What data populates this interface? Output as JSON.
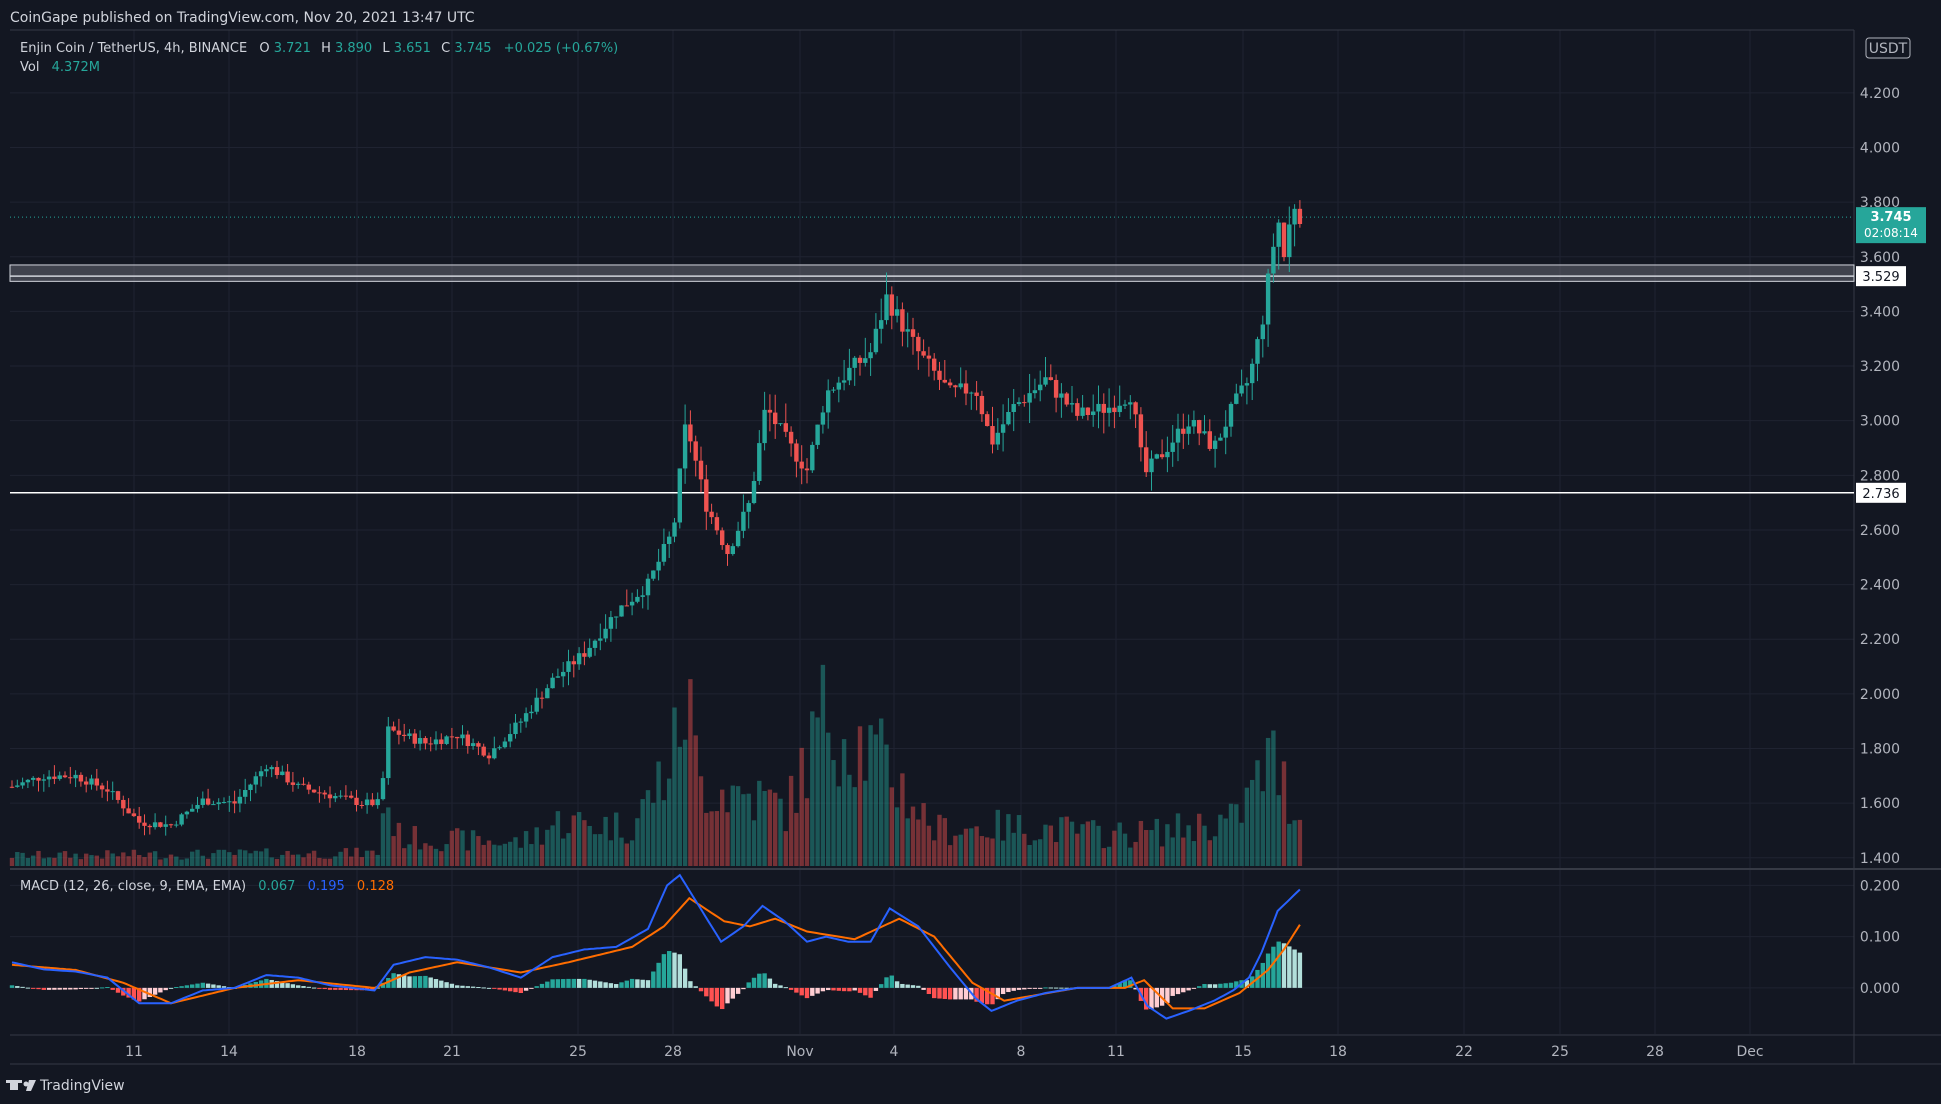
{
  "header": {
    "publisher": "CoinGape published on TradingView.com, Nov 20, 2021 13:47 UTC"
  },
  "footer": {
    "brand": "TradingView"
  },
  "colors": {
    "up": "#26a69a",
    "down": "#ef5350",
    "macd_line": "#2962ff",
    "signal_line": "#ff6d00",
    "background": "#131722"
  },
  "chart_data": [
    {
      "type": "candlestick",
      "title": "Enjin Coin / TetherUS, 4h, BINANCE",
      "ohlc": {
        "o_label": "O",
        "o": "3.721",
        "h_label": "H",
        "h": "3.890",
        "l_label": "L",
        "l": "3.651",
        "c_label": "C",
        "c": "3.745",
        "change": "+0.025 (+0.67%)"
      },
      "volume": {
        "label": "Vol",
        "value": "4.372M"
      },
      "currency": "USDT",
      "x_ticks": [
        "11",
        "14",
        "18",
        "21",
        "25",
        "28",
        "Nov",
        "4",
        "8",
        "11",
        "15",
        "18",
        "22",
        "25",
        "28",
        "Dec"
      ],
      "y_ticks": [
        "4.200",
        "4.000",
        "3.800",
        "3.600",
        "3.400",
        "3.200",
        "3.000",
        "2.800",
        "2.600",
        "2.400",
        "2.200",
        "2.000",
        "1.800",
        "1.600",
        "1.400"
      ],
      "y_range": [
        1.37,
        4.43
      ],
      "last_price": {
        "value": "3.745",
        "countdown": "02:08:14"
      },
      "levels": [
        {
          "value": "3.529"
        },
        {
          "value": "2.736"
        }
      ],
      "resistance_zone": [
        3.51,
        3.57
      ],
      "path_anchors": [
        {
          "d": 0,
          "p": 1.66
        },
        {
          "d": 1,
          "p": 1.7
        },
        {
          "d": 2,
          "p": 1.7
        },
        {
          "d": 3,
          "p": 1.65
        },
        {
          "d": 4,
          "p": 1.53
        },
        {
          "d": 5,
          "p": 1.52
        },
        {
          "d": 6,
          "p": 1.61
        },
        {
          "d": 7,
          "p": 1.6
        },
        {
          "d": 8,
          "p": 1.74
        },
        {
          "d": 9,
          "p": 1.66
        },
        {
          "d": 10,
          "p": 1.63
        },
        {
          "d": 11,
          "p": 1.6
        },
        {
          "d": 11.6,
          "p": 1.6
        },
        {
          "d": 11.8,
          "p": 1.87
        },
        {
          "d": 13,
          "p": 1.82
        },
        {
          "d": 14,
          "p": 1.85
        },
        {
          "d": 15,
          "p": 1.78
        },
        {
          "d": 16,
          "p": 1.9
        },
        {
          "d": 17,
          "p": 2.05
        },
        {
          "d": 18,
          "p": 2.15
        },
        {
          "d": 19,
          "p": 2.3
        },
        {
          "d": 20,
          "p": 2.4
        },
        {
          "d": 20.8,
          "p": 2.6
        },
        {
          "d": 21.2,
          "p": 3.0
        },
        {
          "d": 21.8,
          "p": 2.7
        },
        {
          "d": 22.5,
          "p": 2.52
        },
        {
          "d": 23.2,
          "p": 2.7
        },
        {
          "d": 23.7,
          "p": 3.05
        },
        {
          "d": 24.5,
          "p": 2.9
        },
        {
          "d": 25,
          "p": 2.82
        },
        {
          "d": 25.6,
          "p": 3.1
        },
        {
          "d": 26.3,
          "p": 3.18
        },
        {
          "d": 27,
          "p": 3.25
        },
        {
          "d": 27.5,
          "p": 3.45
        },
        {
          "d": 28.5,
          "p": 3.25
        },
        {
          "d": 29.5,
          "p": 3.1
        },
        {
          "d": 30.3,
          "p": 3.12
        },
        {
          "d": 30.8,
          "p": 2.92
        },
        {
          "d": 31.5,
          "p": 3.05
        },
        {
          "d": 32.5,
          "p": 3.15
        },
        {
          "d": 33.5,
          "p": 3.02
        },
        {
          "d": 34.5,
          "p": 3.05
        },
        {
          "d": 35.2,
          "p": 3.1
        },
        {
          "d": 35.6,
          "p": 2.8
        },
        {
          "d": 36.3,
          "p": 2.9
        },
        {
          "d": 37,
          "p": 3.0
        },
        {
          "d": 37.8,
          "p": 2.9
        },
        {
          "d": 38.4,
          "p": 3.05
        },
        {
          "d": 38.9,
          "p": 3.15
        },
        {
          "d": 39.3,
          "p": 3.35
        },
        {
          "d": 39.8,
          "p": 3.75
        },
        {
          "d": 40,
          "p": 3.6
        },
        {
          "d": 40.3,
          "p": 3.8
        },
        {
          "d": 40.55,
          "p": 3.745
        }
      ],
      "volume_anchors": [
        {
          "d": 0,
          "v": 0.2
        },
        {
          "d": 11.5,
          "v": 0.25
        },
        {
          "d": 11.7,
          "v": 1.3
        },
        {
          "d": 12.2,
          "v": 0.55
        },
        {
          "d": 16,
          "v": 0.45
        },
        {
          "d": 17.2,
          "v": 0.85
        },
        {
          "d": 19.5,
          "v": 0.75
        },
        {
          "d": 20.8,
          "v": 2.1
        },
        {
          "d": 21.2,
          "v": 3.4
        },
        {
          "d": 21.6,
          "v": 1.6
        },
        {
          "d": 23.5,
          "v": 1.3
        },
        {
          "d": 24.4,
          "v": 1.1
        },
        {
          "d": 25.6,
          "v": 3.0
        },
        {
          "d": 27.5,
          "v": 1.9
        },
        {
          "d": 29,
          "v": 0.7
        },
        {
          "d": 31,
          "v": 0.75
        },
        {
          "d": 33,
          "v": 0.7
        },
        {
          "d": 34.5,
          "v": 0.6
        },
        {
          "d": 36,
          "v": 0.65
        },
        {
          "d": 38.5,
          "v": 0.9
        },
        {
          "d": 39.6,
          "v": 2.1
        },
        {
          "d": 40.55,
          "v": 0.8
        }
      ]
    },
    {
      "type": "line",
      "title": "MACD (12, 26, close, 9, EMA, EMA)",
      "values": {
        "histogram": "0.067",
        "macd": "0.195",
        "signal": "0.128"
      },
      "y_ticks": [
        "0.200",
        "0.100",
        "0.000"
      ],
      "y_range": [
        -0.09,
        0.23
      ],
      "series": [
        {
          "points": [
            {
              "d": 0,
              "v": 0.05
            },
            {
              "d": 1,
              "v": 0.036
            },
            {
              "d": 2,
              "v": 0.032
            },
            {
              "d": 3,
              "v": 0.02
            },
            {
              "d": 4,
              "v": -0.03
            },
            {
              "d": 5,
              "v": -0.03
            },
            {
              "d": 6,
              "v": -0.005
            },
            {
              "d": 7,
              "v": 0.0
            },
            {
              "d": 8,
              "v": 0.025
            },
            {
              "d": 9,
              "v": 0.02
            },
            {
              "d": 10,
              "v": 0.005
            },
            {
              "d": 11.4,
              "v": -0.005
            },
            {
              "d": 12,
              "v": 0.045
            },
            {
              "d": 13,
              "v": 0.06
            },
            {
              "d": 14,
              "v": 0.055
            },
            {
              "d": 15,
              "v": 0.04
            },
            {
              "d": 16,
              "v": 0.02
            },
            {
              "d": 17,
              "v": 0.06
            },
            {
              "d": 18,
              "v": 0.075
            },
            {
              "d": 19,
              "v": 0.08
            },
            {
              "d": 20,
              "v": 0.115
            },
            {
              "d": 20.6,
              "v": 0.2
            },
            {
              "d": 21,
              "v": 0.22
            },
            {
              "d": 21.5,
              "v": 0.17
            },
            {
              "d": 22.3,
              "v": 0.09
            },
            {
              "d": 23,
              "v": 0.12
            },
            {
              "d": 23.6,
              "v": 0.16
            },
            {
              "d": 24.3,
              "v": 0.13
            },
            {
              "d": 25,
              "v": 0.09
            },
            {
              "d": 25.6,
              "v": 0.1
            },
            {
              "d": 26.3,
              "v": 0.09
            },
            {
              "d": 27,
              "v": 0.09
            },
            {
              "d": 27.6,
              "v": 0.155
            },
            {
              "d": 28.5,
              "v": 0.12
            },
            {
              "d": 29.5,
              "v": 0.04
            },
            {
              "d": 30.3,
              "v": -0.02
            },
            {
              "d": 30.8,
              "v": -0.045
            },
            {
              "d": 31.6,
              "v": -0.025
            },
            {
              "d": 32.5,
              "v": -0.01
            },
            {
              "d": 33.5,
              "v": 0.0
            },
            {
              "d": 34.5,
              "v": 0.0
            },
            {
              "d": 35.2,
              "v": 0.02
            },
            {
              "d": 35.7,
              "v": -0.035
            },
            {
              "d": 36.3,
              "v": -0.06
            },
            {
              "d": 37,
              "v": -0.045
            },
            {
              "d": 37.8,
              "v": -0.025
            },
            {
              "d": 38.4,
              "v": -0.005
            },
            {
              "d": 38.9,
              "v": 0.02
            },
            {
              "d": 39.3,
              "v": 0.07
            },
            {
              "d": 39.8,
              "v": 0.15
            },
            {
              "d": 40.55,
              "v": 0.195
            }
          ]
        },
        {
          "points": [
            {
              "d": 0,
              "v": 0.045
            },
            {
              "d": 2,
              "v": 0.035
            },
            {
              "d": 3.5,
              "v": 0.01
            },
            {
              "d": 5,
              "v": -0.03
            },
            {
              "d": 7,
              "v": 0.0
            },
            {
              "d": 9,
              "v": 0.015
            },
            {
              "d": 11.4,
              "v": 0.0
            },
            {
              "d": 12.5,
              "v": 0.03
            },
            {
              "d": 14,
              "v": 0.05
            },
            {
              "d": 16,
              "v": 0.03
            },
            {
              "d": 17.5,
              "v": 0.05
            },
            {
              "d": 19.5,
              "v": 0.08
            },
            {
              "d": 20.5,
              "v": 0.12
            },
            {
              "d": 21.3,
              "v": 0.175
            },
            {
              "d": 22.4,
              "v": 0.13
            },
            {
              "d": 23.2,
              "v": 0.12
            },
            {
              "d": 24,
              "v": 0.135
            },
            {
              "d": 25,
              "v": 0.11
            },
            {
              "d": 26.5,
              "v": 0.095
            },
            {
              "d": 27.9,
              "v": 0.135
            },
            {
              "d": 29,
              "v": 0.1
            },
            {
              "d": 30.2,
              "v": 0.01
            },
            {
              "d": 31.2,
              "v": -0.025
            },
            {
              "d": 33.5,
              "v": 0.0
            },
            {
              "d": 35,
              "v": 0.0
            },
            {
              "d": 35.6,
              "v": 0.015
            },
            {
              "d": 36.5,
              "v": -0.04
            },
            {
              "d": 37.5,
              "v": -0.04
            },
            {
              "d": 38.6,
              "v": -0.01
            },
            {
              "d": 39.5,
              "v": 0.035
            },
            {
              "d": 40,
              "v": 0.075
            },
            {
              "d": 40.55,
              "v": 0.128
            }
          ]
        }
      ]
    }
  ]
}
